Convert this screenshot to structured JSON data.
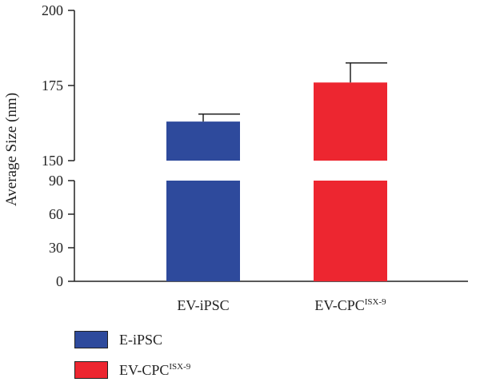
{
  "chart_data": {
    "type": "bar",
    "title": "",
    "xlabel": "",
    "ylabel": "Average Size (nm)",
    "categories": [
      {
        "main": "EV-iPSC",
        "sup": ""
      },
      {
        "main": "EV-CPC",
        "sup": "ISX-9"
      }
    ],
    "values": [
      163,
      176
    ],
    "errors": [
      2.5,
      6.5
    ],
    "colors": [
      "#2e4a9c",
      "#ed2630"
    ],
    "broken_axis": {
      "lower_range": [
        0,
        90
      ],
      "upper_range": [
        150,
        200
      ],
      "lower_ticks": [
        "0",
        "30",
        "60",
        "90"
      ],
      "upper_ticks": [
        "150",
        "175",
        "200"
      ]
    },
    "grid": false,
    "legend_placement": "bottom-left",
    "legend": [
      {
        "main": "E-iPSC",
        "sup": "",
        "color": "#2e4a9c"
      },
      {
        "main": "EV-CPC",
        "sup": "ISX-9",
        "color": "#ed2630"
      }
    ]
  }
}
